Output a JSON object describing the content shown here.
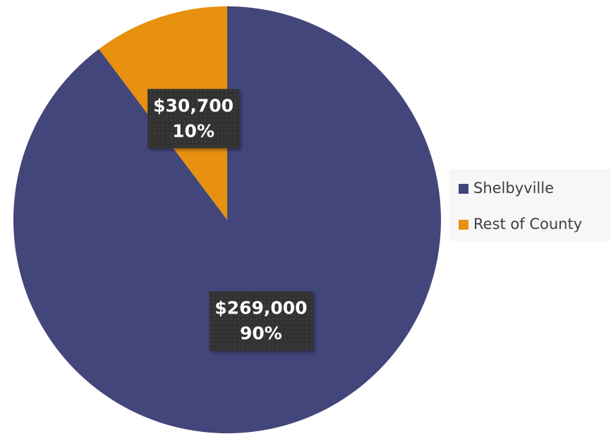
{
  "chart_data": {
    "type": "pie",
    "categories": [
      "Shelbyville",
      "Rest of County"
    ],
    "values": [
      269000,
      30700
    ],
    "value_labels": [
      "$269,000",
      "$30,700"
    ],
    "percents": [
      90,
      10
    ],
    "percent_labels": [
      "90%",
      "10%"
    ],
    "colors": [
      "#43467a",
      "#e8900f"
    ],
    "legend": "right"
  }
}
